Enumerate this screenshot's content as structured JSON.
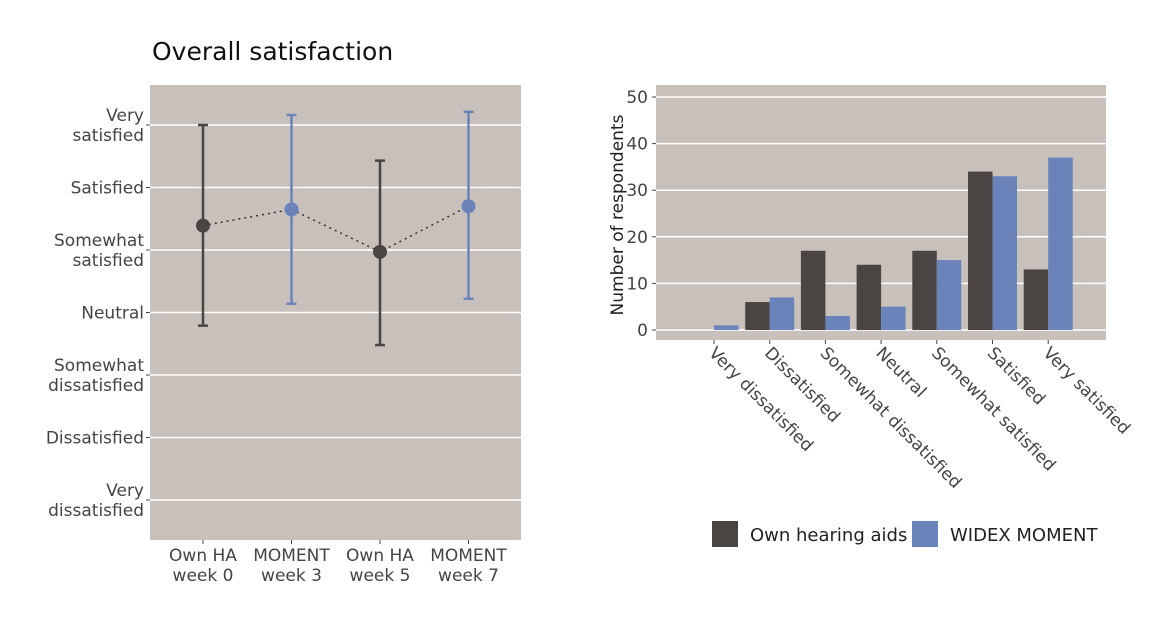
{
  "colors": {
    "panel": "#c8c1bb",
    "grid": "#ffffff",
    "own": "#4a4542",
    "moment": "#6a84bb",
    "text": "#444444"
  },
  "chart_data": [
    {
      "type": "scatter",
      "title": "Overall satisfaction",
      "xlabel": "",
      "ylabel": "",
      "categories": [
        "Own HA\nweek 0",
        "MOMENT\nweek 3",
        "Own HA\nweek 5",
        "MOMENT\nweek 7"
      ],
      "category_lines": [
        [
          "Own HA",
          "week 0"
        ],
        [
          "MOMENT",
          "week 3"
        ],
        [
          "Own HA",
          "week 5"
        ],
        [
          "MOMENT",
          "week 7"
        ]
      ],
      "series_of_point": [
        "own",
        "moment",
        "own",
        "moment"
      ],
      "y_scale_labels": [
        [
          "Very",
          "dissatisfied"
        ],
        [
          "Dissatisfied"
        ],
        [
          "Somewhat",
          "dissatisfied"
        ],
        [
          "Neutral"
        ],
        [
          "Somewhat",
          "satisfied"
        ],
        [
          "Satisfied"
        ],
        [
          "Very",
          "satisfied"
        ]
      ],
      "ylim": [
        0.3,
        7.6
      ],
      "mean": [
        5.39,
        5.65,
        4.97,
        5.7
      ],
      "upper": [
        7.0,
        7.16,
        6.43,
        7.21
      ],
      "lower": [
        3.79,
        4.14,
        3.48,
        4.22
      ],
      "connector": "dotted"
    },
    {
      "type": "bar",
      "title": "",
      "xlabel": "",
      "ylabel": "Number of respondents",
      "ylim": [
        -2,
        52
      ],
      "yticks": [
        0,
        10,
        20,
        30,
        40,
        50
      ],
      "categories": [
        "Very dissatisfied",
        "Dissatisfied",
        "Somewhat dissatisfied",
        "Neutral",
        "Somewhat satisfied",
        "Satisfied",
        "Very satisfied"
      ],
      "series": [
        {
          "name": "Own hearing aids",
          "key": "own",
          "values": [
            0,
            6,
            17,
            14,
            17,
            34,
            13
          ]
        },
        {
          "name": "WIDEX MOMENT",
          "key": "moment",
          "values": [
            1,
            7,
            3,
            5,
            15,
            33,
            37
          ]
        }
      ],
      "legend_position": "bottom"
    }
  ]
}
